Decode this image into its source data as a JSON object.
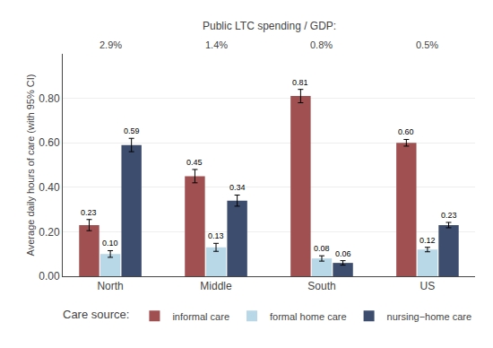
{
  "chart_data": {
    "type": "bar",
    "categories": [
      "North",
      "Middle",
      "South",
      "US"
    ],
    "secondary_title": "Public LTC spending / GDP:",
    "secondary_categories": [
      "2.9%",
      "1.4%",
      "0.8%",
      "0.5%"
    ],
    "series": [
      {
        "name": "informal care",
        "color": "#a05050",
        "values": [
          0.23,
          0.45,
          0.81,
          0.6
        ],
        "value_labels": [
          "0.23",
          "0.45",
          "0.81",
          "0.60"
        ],
        "errors": [
          0.025,
          0.03,
          0.03,
          0.015
        ]
      },
      {
        "name": "formal home care",
        "color": "#b8d8e8",
        "values": [
          0.1,
          0.13,
          0.08,
          0.12
        ],
        "value_labels": [
          "0.10",
          "0.13",
          "0.08",
          "0.12"
        ],
        "errors": [
          0.015,
          0.018,
          0.012,
          0.01
        ]
      },
      {
        "name": "nursing−home care",
        "color": "#3d4d6e",
        "values": [
          0.59,
          0.34,
          0.06,
          0.23
        ],
        "value_labels": [
          "0.59",
          "0.34",
          "0.06",
          "0.23"
        ],
        "errors": [
          0.03,
          0.025,
          0.01,
          0.012
        ]
      }
    ],
    "ylabel": "Average daily hours of care (with 95% CI)",
    "ylim": [
      0.0,
      1.0
    ],
    "yticks": [
      {
        "value": 0.0,
        "label": "0.00"
      },
      {
        "value": 0.2,
        "label": "0.20"
      },
      {
        "value": 0.4,
        "label": "0.40"
      },
      {
        "value": 0.6,
        "label": "0.60"
      },
      {
        "value": 0.8,
        "label": "0.80"
      }
    ],
    "grid": true,
    "data_labels": true,
    "legend": "bottom",
    "legend_title": "Care source:"
  }
}
